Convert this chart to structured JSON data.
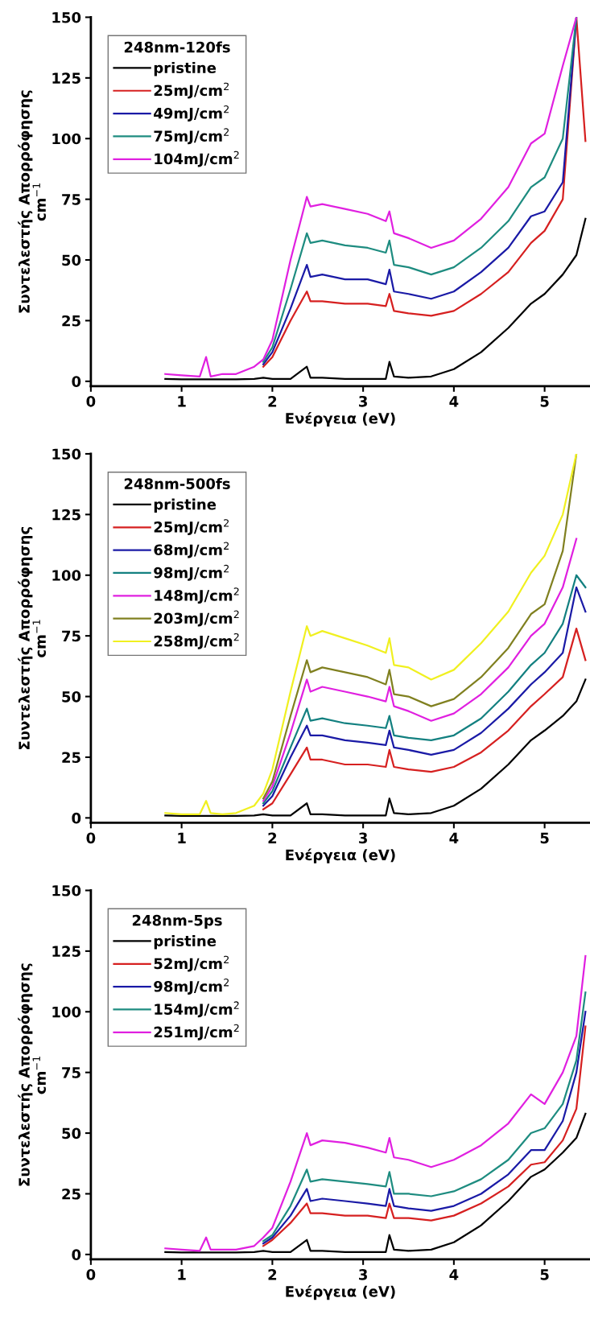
{
  "chart_data": [
    {
      "type": "line",
      "legend_title": "248nm-120fs",
      "xlabel": "Ενέργεια (eV)",
      "ylabel": "Συντελεστής Απορρόφησης\ncm$^{−1}$",
      "legend": "top left",
      "xlim": [
        0,
        5.5
      ],
      "ylim": [
        -2,
        150
      ],
      "xticks": [
        0,
        1,
        2,
        3,
        4,
        5
      ],
      "yticks": [
        0,
        25,
        50,
        75,
        100,
        125,
        150
      ],
      "x": [
        0.82,
        1.0,
        1.2,
        1.27,
        1.32,
        1.45,
        1.6,
        1.8,
        1.9,
        2.0,
        2.2,
        2.38,
        2.42,
        2.55,
        2.8,
        3.05,
        3.25,
        3.29,
        3.34,
        3.5,
        3.75,
        4.0,
        4.3,
        4.6,
        4.85,
        5.0,
        5.2,
        5.35,
        5.45
      ],
      "series": [
        {
          "name": "pristine",
          "color": "#000000",
          "values": [
            1,
            0.8,
            0.8,
            0.8,
            0.8,
            0.8,
            0.8,
            1,
            1.5,
            1,
            1,
            6,
            1.5,
            1.5,
            1,
            1,
            1,
            8,
            2,
            1.5,
            2,
            5,
            12,
            22,
            32,
            36,
            44,
            52,
            67
          ]
        },
        {
          "name": "25mJ/cm$^{2}$",
          "color": "#d62020",
          "values": [
            null,
            null,
            null,
            null,
            null,
            null,
            null,
            null,
            6,
            10,
            25,
            37,
            33,
            33,
            32,
            32,
            31,
            36,
            29,
            28,
            27,
            29,
            36,
            45,
            57,
            62,
            75,
            150,
            99
          ]
        },
        {
          "name": "49mJ/cm$^{2}$",
          "color": "#1a1aa6",
          "values": [
            null,
            null,
            null,
            null,
            null,
            null,
            null,
            null,
            7,
            12,
            30,
            48,
            43,
            44,
            42,
            42,
            40,
            46,
            37,
            36,
            34,
            37,
            45,
            55,
            68,
            70,
            82,
            150,
            null
          ]
        },
        {
          "name": "75mJ/cm$^{2}$",
          "color": "#1e8c80",
          "values": [
            null,
            null,
            null,
            null,
            null,
            null,
            null,
            null,
            8,
            14,
            38,
            61,
            57,
            58,
            56,
            55,
            53,
            58,
            48,
            47,
            44,
            47,
            55,
            66,
            80,
            84,
            100,
            150,
            null
          ]
        },
        {
          "name": "104mJ/cm$^{2}$",
          "color": "#e020e0",
          "values": [
            3,
            2.5,
            2,
            10,
            2,
            3,
            3,
            6,
            9,
            17,
            50,
            76,
            72,
            73,
            71,
            69,
            66,
            70,
            61,
            59,
            55,
            58,
            67,
            80,
            98,
            102,
            130,
            150,
            null
          ]
        }
      ]
    },
    {
      "type": "line",
      "legend_title": "248nm-500fs",
      "xlabel": "Ενέργεια (eV)",
      "ylabel": "Συντελεστής Απορρόφησης\ncm$^{−1}$",
      "legend": "top left",
      "xlim": [
        0,
        5.5
      ],
      "ylim": [
        -2,
        150
      ],
      "xticks": [
        0,
        1,
        2,
        3,
        4,
        5
      ],
      "yticks": [
        0,
        25,
        50,
        75,
        100,
        125,
        150
      ],
      "x": [
        0.82,
        1.0,
        1.2,
        1.27,
        1.32,
        1.45,
        1.6,
        1.8,
        1.9,
        2.0,
        2.2,
        2.38,
        2.42,
        2.55,
        2.8,
        3.05,
        3.25,
        3.29,
        3.34,
        3.5,
        3.75,
        4.0,
        4.3,
        4.6,
        4.85,
        5.0,
        5.2,
        5.35,
        5.45
      ],
      "series": [
        {
          "name": "pristine",
          "color": "#000000",
          "values": [
            1,
            0.8,
            0.8,
            0.8,
            0.8,
            0.8,
            0.8,
            1,
            1.5,
            1,
            1,
            6,
            1.5,
            1.5,
            1,
            1,
            1,
            8,
            2,
            1.5,
            2,
            5,
            12,
            22,
            32,
            36,
            42,
            48,
            57
          ]
        },
        {
          "name": "25mJ/cm$^{2}$",
          "color": "#d62020",
          "values": [
            null,
            null,
            null,
            null,
            null,
            null,
            null,
            null,
            3.5,
            6,
            18,
            29,
            24,
            24,
            22,
            22,
            21,
            28,
            21,
            20,
            19,
            21,
            27,
            36,
            46,
            51,
            58,
            78,
            65
          ]
        },
        {
          "name": "68mJ/cm$^{2}$",
          "color": "#1a1aa6",
          "values": [
            null,
            null,
            null,
            null,
            null,
            null,
            null,
            null,
            5,
            9,
            25,
            38,
            34,
            34,
            32,
            31,
            30,
            36,
            29,
            28,
            26,
            28,
            35,
            45,
            55,
            60,
            68,
            95,
            85
          ]
        },
        {
          "name": "98mJ/cm$^{2}$",
          "color": "#138080",
          "values": [
            null,
            null,
            null,
            null,
            null,
            null,
            null,
            null,
            6,
            11,
            29,
            45,
            40,
            41,
            39,
            38,
            37,
            42,
            34,
            33,
            32,
            34,
            41,
            52,
            63,
            68,
            80,
            100,
            95
          ]
        },
        {
          "name": "148mJ/cm$^{2}$",
          "color": "#e020e0",
          "values": [
            null,
            null,
            null,
            null,
            null,
            null,
            null,
            null,
            7,
            13,
            35,
            57,
            52,
            54,
            52,
            50,
            48,
            54,
            46,
            44,
            40,
            43,
            51,
            62,
            75,
            80,
            95,
            115,
            null
          ]
        },
        {
          "name": "203mJ/cm$^{2}$",
          "color": "#808020",
          "values": [
            null,
            null,
            null,
            null,
            null,
            null,
            null,
            null,
            8,
            15,
            42,
            65,
            60,
            62,
            60,
            58,
            55,
            61,
            51,
            50,
            46,
            49,
            58,
            70,
            84,
            88,
            110,
            150,
            null
          ]
        },
        {
          "name": "258mJ/cm$^{2}$",
          "color": "#f0f020",
          "values": [
            2,
            1.5,
            1.5,
            7,
            2,
            1.5,
            2,
            5,
            10,
            20,
            52,
            79,
            75,
            77,
            74,
            71,
            68,
            74,
            63,
            62,
            57,
            61,
            72,
            85,
            101,
            108,
            125,
            150,
            null
          ]
        }
      ]
    },
    {
      "type": "line",
      "legend_title": "248nm-5ps",
      "xlabel": "Ενέργεια (eV)",
      "ylabel": "Συντελεστής Απορρόφησης\ncm$^{−1}$",
      "legend": "top left",
      "xlim": [
        0,
        5.5
      ],
      "ylim": [
        -2,
        150
      ],
      "xticks": [
        0,
        1,
        2,
        3,
        4,
        5
      ],
      "yticks": [
        0,
        25,
        50,
        75,
        100,
        125,
        150
      ],
      "x": [
        0.82,
        1.0,
        1.2,
        1.27,
        1.32,
        1.45,
        1.6,
        1.8,
        1.9,
        2.0,
        2.2,
        2.38,
        2.42,
        2.55,
        2.8,
        3.05,
        3.25,
        3.29,
        3.34,
        3.5,
        3.75,
        4.0,
        4.3,
        4.6,
        4.85,
        5.0,
        5.2,
        5.35,
        5.45
      ],
      "series": [
        {
          "name": "pristine",
          "color": "#000000",
          "values": [
            1,
            0.8,
            0.8,
            0.8,
            0.8,
            0.8,
            0.8,
            1,
            1.5,
            1,
            1,
            6,
            1.5,
            1.5,
            1,
            1,
            1,
            8,
            2,
            1.5,
            2,
            5,
            12,
            22,
            32,
            35,
            42,
            48,
            58
          ]
        },
        {
          "name": "52mJ/cm$^{2}$",
          "color": "#d62020",
          "values": [
            null,
            null,
            null,
            null,
            null,
            null,
            null,
            null,
            3.5,
            6,
            13,
            21,
            17,
            17,
            16,
            16,
            15,
            21,
            15,
            15,
            14,
            16,
            21,
            28,
            37,
            38,
            47,
            60,
            94
          ]
        },
        {
          "name": "98mJ/cm$^{2}$",
          "color": "#1a1aa6",
          "values": [
            null,
            null,
            null,
            null,
            null,
            null,
            null,
            null,
            4.5,
            7,
            16,
            27,
            22,
            23,
            22,
            21,
            20,
            27,
            20,
            19,
            18,
            20,
            25,
            33,
            43,
            43,
            55,
            75,
            100
          ]
        },
        {
          "name": "154mJ/cm$^{2}$",
          "color": "#1e8c80",
          "values": [
            null,
            null,
            null,
            null,
            null,
            null,
            null,
            null,
            5.5,
            8,
            20,
            35,
            30,
            31,
            30,
            29,
            28,
            34,
            25,
            25,
            24,
            26,
            31,
            39,
            50,
            52,
            62,
            80,
            108
          ]
        },
        {
          "name": "251mJ/cm$^{2}$",
          "color": "#e020e0",
          "values": [
            2.5,
            2,
            1.5,
            7,
            2,
            2,
            2,
            3.5,
            7,
            11,
            30,
            50,
            45,
            47,
            46,
            44,
            42,
            48,
            40,
            39,
            36,
            39,
            45,
            54,
            66,
            62,
            75,
            90,
            123
          ]
        }
      ]
    }
  ]
}
